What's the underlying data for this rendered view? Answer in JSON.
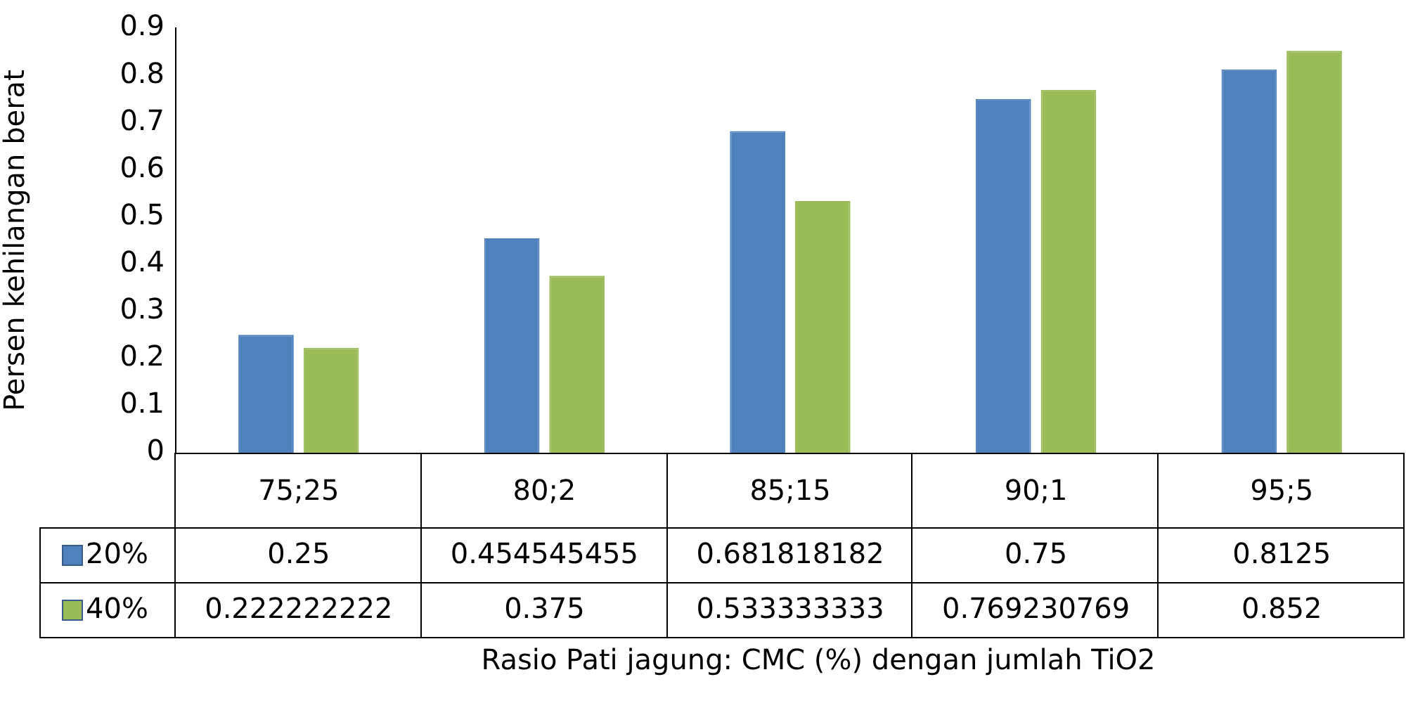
{
  "chart_data": {
    "type": "bar",
    "xlabel": "Rasio Pati jagung: CMC (%) dengan jumlah TiO2",
    "ylabel": "Persen kehilangan berat",
    "categories": [
      "75;25",
      "80;2",
      "85;15",
      "90;1",
      "95;5"
    ],
    "series": [
      {
        "name": "20%",
        "color": "#4f81bd",
        "values": [
          0.25,
          0.454545455,
          0.681818182,
          0.75,
          0.8125
        ]
      },
      {
        "name": "40%",
        "color": "#9bbb59",
        "values": [
          0.222222222,
          0.375,
          0.533333333,
          0.769230769,
          0.852
        ]
      }
    ],
    "ylim": [
      0,
      0.9
    ],
    "yticks": [
      0,
      0.1,
      0.2,
      0.3,
      0.4,
      0.5,
      0.6,
      0.7,
      0.8,
      0.9
    ],
    "grid": false,
    "legend": "bottom",
    "data_labels": true
  }
}
